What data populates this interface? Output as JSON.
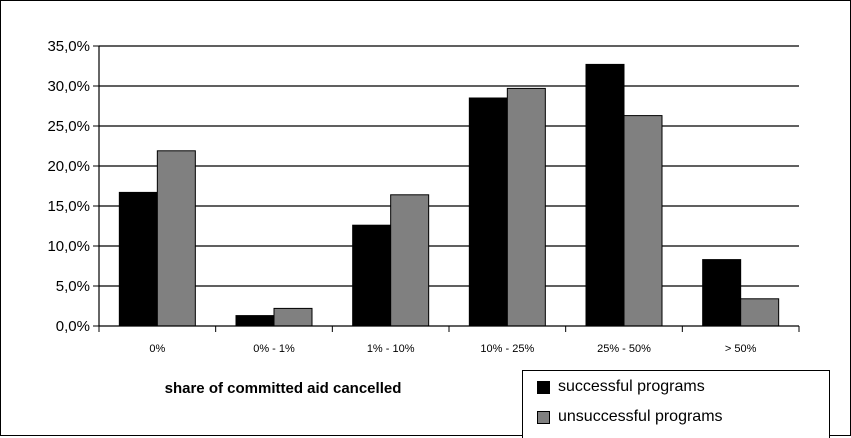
{
  "chart_data": {
    "type": "bar",
    "categories": [
      "0%",
      "0% - 1%",
      "1% - 10%",
      "10% - 25%",
      "25% - 50%",
      "> 50%"
    ],
    "series": [
      {
        "name": "successful programs",
        "color": "#000000",
        "values": [
          16.7,
          1.3,
          12.6,
          28.5,
          32.7,
          8.3
        ]
      },
      {
        "name": "unsuccessful programs",
        "color": "#808080",
        "values": [
          21.9,
          2.2,
          16.4,
          29.7,
          26.3,
          3.4
        ]
      }
    ],
    "xlabel": "share of committed aid cancelled",
    "ylabel": "",
    "ylim": [
      0,
      35
    ],
    "yticks": [
      "0,0%",
      "5,0%",
      "10,0%",
      "15,0%",
      "20,0%",
      "25,0%",
      "30,0%",
      "35,0%"
    ],
    "grid": true,
    "legend_position": "bottom-right"
  }
}
